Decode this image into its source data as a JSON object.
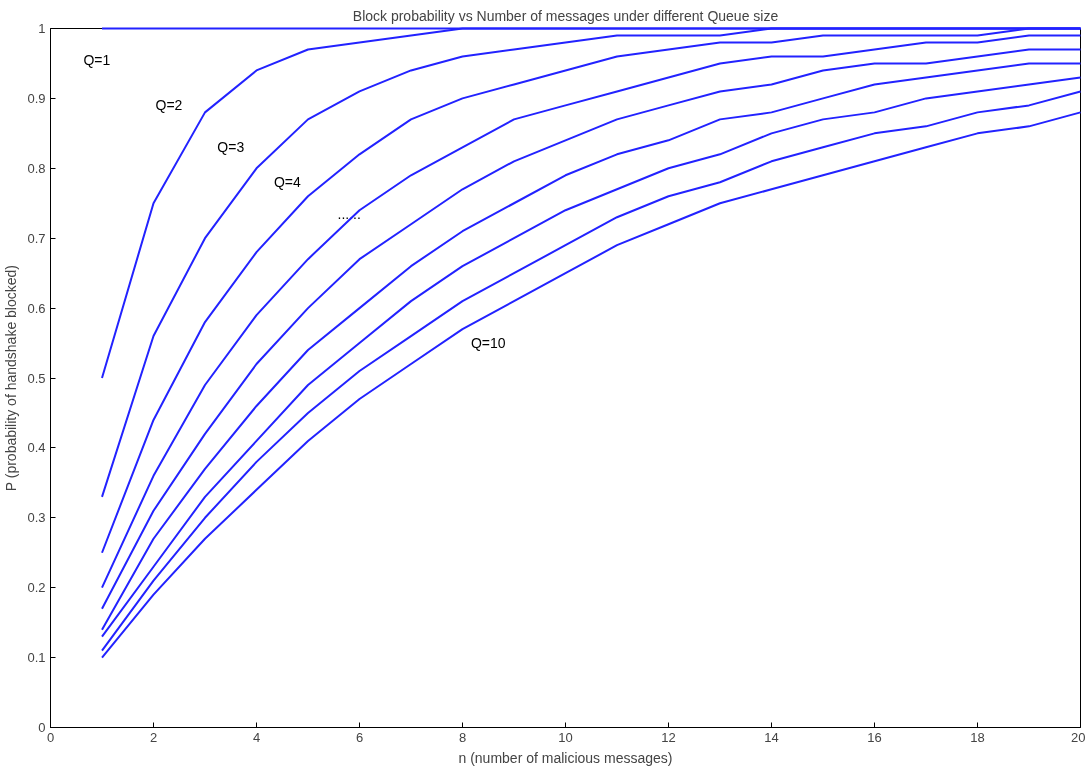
{
  "chart_data": {
    "type": "line",
    "title": "Block probability vs Number of messages under different Queue size",
    "xlabel": "n (number of malicious messages)",
    "ylabel": "P (probability of handshake blocked)",
    "x": [
      1,
      2,
      3,
      4,
      5,
      6,
      7,
      8,
      9,
      10,
      11,
      12,
      13,
      14,
      15,
      16,
      17,
      18,
      19,
      20
    ],
    "series": [
      {
        "color": "#2222ff",
        "values": [
          1,
          1,
          1,
          1,
          1,
          1,
          1,
          1,
          1,
          1,
          1,
          1,
          1,
          1,
          1,
          1,
          1,
          1,
          1,
          1
        ]
      },
      {
        "color": "#2222ff",
        "values": [
          0.5,
          0.75,
          0.88,
          0.94,
          0.97,
          0.98,
          0.99,
          1,
          1,
          1,
          1,
          1,
          1,
          1,
          1,
          1,
          1,
          1,
          1,
          1
        ]
      },
      {
        "color": "#2222ff",
        "values": [
          0.33,
          0.56,
          0.7,
          0.8,
          0.87,
          0.91,
          0.94,
          0.96,
          0.97,
          0.98,
          0.99,
          0.99,
          0.99,
          1,
          1,
          1,
          1,
          1,
          1,
          1
        ]
      },
      {
        "color": "#2222ff",
        "values": [
          0.25,
          0.44,
          0.58,
          0.68,
          0.76,
          0.82,
          0.87,
          0.9,
          0.92,
          0.94,
          0.96,
          0.97,
          0.98,
          0.98,
          0.99,
          0.99,
          0.99,
          0.99,
          1,
          1
        ]
      },
      {
        "color": "#2222ff",
        "values": [
          0.2,
          0.36,
          0.49,
          0.59,
          0.67,
          0.74,
          0.79,
          0.83,
          0.87,
          0.89,
          0.91,
          0.93,
          0.95,
          0.96,
          0.96,
          0.97,
          0.98,
          0.98,
          0.99,
          0.99
        ]
      },
      {
        "color": "#2222ff",
        "values": [
          0.17,
          0.31,
          0.42,
          0.52,
          0.6,
          0.67,
          0.72,
          0.77,
          0.81,
          0.84,
          0.87,
          0.89,
          0.91,
          0.92,
          0.94,
          0.95,
          0.95,
          0.96,
          0.97,
          0.97
        ]
      },
      {
        "color": "#2222ff",
        "values": [
          0.14,
          0.27,
          0.37,
          0.46,
          0.54,
          0.6,
          0.66,
          0.71,
          0.75,
          0.79,
          0.82,
          0.84,
          0.87,
          0.88,
          0.9,
          0.92,
          0.93,
          0.94,
          0.95,
          0.95
        ]
      },
      {
        "color": "#2222ff",
        "values": [
          0.13,
          0.23,
          0.33,
          0.41,
          0.49,
          0.55,
          0.61,
          0.66,
          0.7,
          0.74,
          0.77,
          0.8,
          0.82,
          0.85,
          0.87,
          0.88,
          0.9,
          0.91,
          0.92,
          0.93
        ]
      },
      {
        "color": "#2222ff",
        "values": [
          0.11,
          0.21,
          0.3,
          0.38,
          0.45,
          0.51,
          0.56,
          0.61,
          0.65,
          0.69,
          0.73,
          0.76,
          0.78,
          0.81,
          0.83,
          0.85,
          0.86,
          0.88,
          0.89,
          0.91
        ]
      },
      {
        "color": "#2222ff",
        "values": [
          0.1,
          0.19,
          0.27,
          0.34,
          0.41,
          0.47,
          0.52,
          0.57,
          0.61,
          0.65,
          0.69,
          0.72,
          0.75,
          0.77,
          0.79,
          0.81,
          0.83,
          0.85,
          0.86,
          0.88
        ]
      }
    ],
    "annotations": [
      "Q=1",
      "Q=2",
      "Q=3",
      "Q=4",
      "......",
      "Q=10"
    ],
    "xlim": [
      0,
      20
    ],
    "ylim": [
      0,
      1
    ],
    "xticks": [
      0,
      2,
      4,
      6,
      8,
      10,
      12,
      14,
      16,
      18,
      20
    ],
    "yticks": [
      0,
      {
        "value": 0.1,
        "label": "0.1"
      },
      {
        "value": 0.2,
        "label": "0.2"
      },
      {
        "value": 0.3,
        "label": "0.3"
      },
      {
        "value": 0.4,
        "label": "0.4"
      },
      {
        "value": 0.5,
        "label": "0.5"
      },
      {
        "value": 0.6,
        "label": "0.6"
      },
      {
        "value": 0.7,
        "label": "0.7"
      },
      {
        "value": 0.8,
        "label": "0.8"
      },
      {
        "value": 0.9,
        "label": "0.9"
      },
      1
    ],
    "grid": false,
    "marker": "none",
    "line_style": "solid"
  }
}
